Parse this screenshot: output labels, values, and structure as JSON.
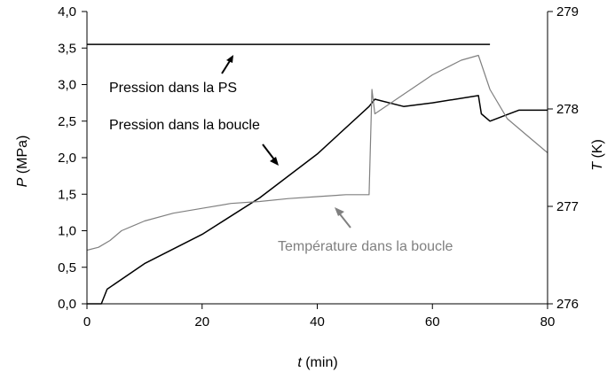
{
  "chart_data": {
    "type": "line",
    "xlabel": {
      "symbol": "t",
      "unit": " (min)"
    },
    "ylabel_left": {
      "symbol": "P",
      "unit": " (MPa)"
    },
    "ylabel_right": {
      "symbol": "T",
      "unit": " (K)"
    },
    "xlim": [
      0,
      80
    ],
    "ylim_left": [
      0,
      4.0
    ],
    "ylim_right": [
      276,
      279
    ],
    "x_ticks": [
      0,
      20,
      40,
      60,
      80
    ],
    "x_tick_labels": [
      "0",
      "20",
      "40",
      "60",
      "80"
    ],
    "y_left_ticks": [
      0,
      0.5,
      1.0,
      1.5,
      2.0,
      2.5,
      3.0,
      3.5,
      4.0
    ],
    "y_left_tick_labels": [
      "0,0",
      "0,5",
      "1,0",
      "1,5",
      "2,0",
      "2,5",
      "3,0",
      "3,5",
      "4,0"
    ],
    "y_right_ticks": [
      276,
      277,
      278,
      279
    ],
    "y_right_tick_labels": [
      "276",
      "277",
      "278",
      "279"
    ],
    "grid": false,
    "legend": "none",
    "series": [
      {
        "axis": "left",
        "color": "#000000",
        "x": [
          0,
          10,
          20,
          30,
          40,
          50,
          60,
          70
        ],
        "y": [
          3.55,
          3.55,
          3.55,
          3.55,
          3.55,
          3.55,
          3.55,
          3.55
        ]
      },
      {
        "axis": "left",
        "color": "#000000",
        "x": [
          0,
          2.5,
          3.5,
          10,
          20,
          30,
          40,
          49,
          50,
          55,
          60,
          68,
          68.5,
          70,
          75,
          80
        ],
        "y": [
          0.0,
          0.0,
          0.2,
          0.55,
          0.95,
          1.45,
          2.05,
          2.7,
          2.8,
          2.7,
          2.75,
          2.85,
          2.6,
          2.5,
          2.65,
          2.65
        ]
      },
      {
        "axis": "right",
        "color": "#808080",
        "x": [
          0,
          2,
          4,
          6,
          10,
          15,
          20,
          25,
          30,
          35,
          40,
          45,
          49,
          49.5,
          50,
          55,
          60,
          65,
          68,
          70,
          73,
          76,
          80
        ],
        "y": [
          276.55,
          276.58,
          276.65,
          276.75,
          276.85,
          276.93,
          276.98,
          277.03,
          277.05,
          277.08,
          277.1,
          277.12,
          277.12,
          278.2,
          277.95,
          278.15,
          278.35,
          278.5,
          278.55,
          278.2,
          277.9,
          277.75,
          277.55
        ]
      }
    ],
    "annotations": [
      {
        "text": "Pression dans la PS",
        "color": "#000000"
      },
      {
        "text": "Pression dans la boucle",
        "color": "#000000"
      },
      {
        "text": "Température dans la boucle",
        "color": "#808080"
      }
    ]
  }
}
